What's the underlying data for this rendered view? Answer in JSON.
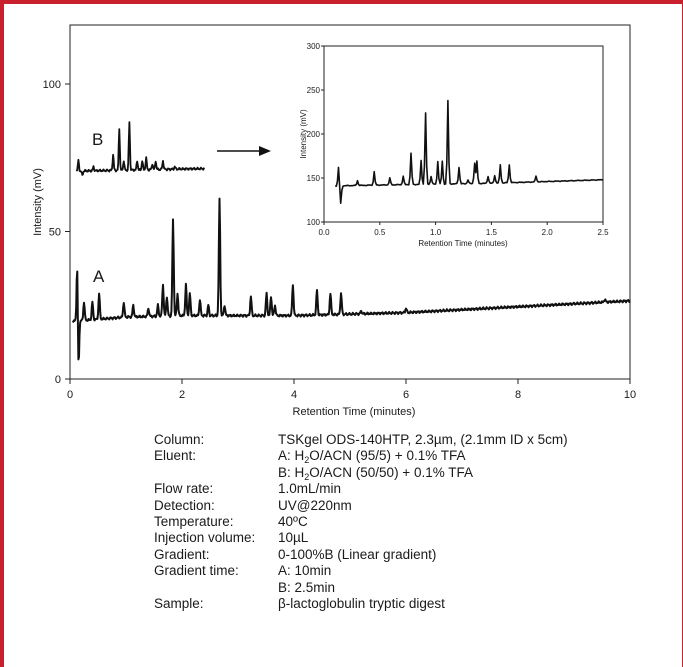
{
  "chart_data": [
    {
      "type": "line",
      "id": "main",
      "xlabel": "Retention Time (minutes)",
      "ylabel": "Intensity (mV)",
      "xlim": [
        0,
        10
      ],
      "ylim": [
        0,
        120
      ],
      "xticks": [
        0,
        2,
        4,
        6,
        8,
        10
      ],
      "yticks": [
        0,
        50,
        100
      ],
      "grid": false,
      "annotations": [
        "A",
        "B"
      ],
      "baseline_A": {
        "x": [
          0.0,
          1.0,
          2.0,
          3.0,
          4.0,
          5.0,
          6.0,
          7.0,
          8.0,
          9.0,
          10.0
        ],
        "y": [
          19.5,
          21,
          21.5,
          21.5,
          21.5,
          22,
          22.5,
          23.5,
          24.5,
          25.5,
          26.5
        ]
      },
      "peaks_A": [
        {
          "x": 0.13,
          "y": 41
        },
        {
          "x": 0.15,
          "y": 1
        },
        {
          "x": 0.25,
          "y": 26
        },
        {
          "x": 0.4,
          "y": 26
        },
        {
          "x": 0.52,
          "y": 29
        },
        {
          "x": 0.96,
          "y": 26
        },
        {
          "x": 1.13,
          "y": 25
        },
        {
          "x": 1.4,
          "y": 24
        },
        {
          "x": 1.57,
          "y": 25
        },
        {
          "x": 1.66,
          "y": 32
        },
        {
          "x": 1.73,
          "y": 28
        },
        {
          "x": 1.84,
          "y": 54
        },
        {
          "x": 1.92,
          "y": 29
        },
        {
          "x": 2.07,
          "y": 32
        },
        {
          "x": 2.14,
          "y": 29
        },
        {
          "x": 2.32,
          "y": 27
        },
        {
          "x": 2.47,
          "y": 25
        },
        {
          "x": 2.67,
          "y": 61
        },
        {
          "x": 2.76,
          "y": 25
        },
        {
          "x": 3.23,
          "y": 28
        },
        {
          "x": 3.51,
          "y": 29
        },
        {
          "x": 3.59,
          "y": 28
        },
        {
          "x": 3.66,
          "y": 25
        },
        {
          "x": 3.98,
          "y": 32
        },
        {
          "x": 4.41,
          "y": 30
        },
        {
          "x": 4.65,
          "y": 29
        },
        {
          "x": 4.84,
          "y": 29
        },
        {
          "x": 5.2,
          "y": 23
        },
        {
          "x": 6.0,
          "y": 24
        },
        {
          "x": 9.55,
          "y": 27
        }
      ],
      "baseline_B": {
        "x": [
          0.15,
          1.0,
          2.0,
          2.4
        ],
        "y": [
          70.5,
          70.8,
          71.2,
          71.3
        ]
      },
      "peaks_B": [
        {
          "x": 0.15,
          "y": 74
        },
        {
          "x": 0.22,
          "y": 69
        },
        {
          "x": 0.42,
          "y": 72
        },
        {
          "x": 0.77,
          "y": 76
        },
        {
          "x": 0.88,
          "y": 85
        },
        {
          "x": 0.96,
          "y": 74
        },
        {
          "x": 1.06,
          "y": 87
        },
        {
          "x": 1.2,
          "y": 74
        },
        {
          "x": 1.29,
          "y": 74
        },
        {
          "x": 1.36,
          "y": 75
        },
        {
          "x": 1.47,
          "y": 73
        },
        {
          "x": 1.53,
          "y": 74
        },
        {
          "x": 1.66,
          "y": 74
        },
        {
          "x": 1.87,
          "y": 72
        }
      ]
    },
    {
      "type": "line",
      "id": "inset",
      "xlabel": "Retention Time (minutes)",
      "ylabel": "Intensity (mV)",
      "xlim": [
        0,
        2.5
      ],
      "ylim": [
        100,
        300
      ],
      "xticks": [
        "0.0",
        "0.5",
        "1.0",
        "1.5",
        "2.0",
        "2.5"
      ],
      "yticks": [
        "100",
        "150",
        "200",
        "250",
        "300"
      ],
      "grid": false,
      "baseline": {
        "x": [
          0.1,
          0.5,
          1.0,
          1.5,
          2.0,
          2.5
        ],
        "y": [
          141,
          142,
          143,
          144,
          146,
          148
        ]
      },
      "peaks": [
        {
          "x": 0.13,
          "y": 162
        },
        {
          "x": 0.15,
          "y": 121
        },
        {
          "x": 0.3,
          "y": 147
        },
        {
          "x": 0.45,
          "y": 157
        },
        {
          "x": 0.59,
          "y": 150
        },
        {
          "x": 0.71,
          "y": 152
        },
        {
          "x": 0.78,
          "y": 178
        },
        {
          "x": 0.87,
          "y": 170
        },
        {
          "x": 0.91,
          "y": 224
        },
        {
          "x": 0.96,
          "y": 152
        },
        {
          "x": 1.02,
          "y": 169
        },
        {
          "x": 1.06,
          "y": 169
        },
        {
          "x": 1.11,
          "y": 238
        },
        {
          "x": 1.21,
          "y": 162
        },
        {
          "x": 1.29,
          "y": 148
        },
        {
          "x": 1.35,
          "y": 167
        },
        {
          "x": 1.37,
          "y": 169
        },
        {
          "x": 1.47,
          "y": 152
        },
        {
          "x": 1.53,
          "y": 153
        },
        {
          "x": 1.58,
          "y": 165
        },
        {
          "x": 1.66,
          "y": 165
        },
        {
          "x": 1.9,
          "y": 152
        }
      ]
    }
  ],
  "conditions": [
    {
      "label": "Column:",
      "value": "TSKgel ODS-140HTP, 2.3µm, (2.1mm ID x 5cm)"
    },
    {
      "label": "Eluent:",
      "value_pre": "A: H",
      "value_sub": "2",
      "value_post": "O/ACN (95/5) + 0.1% TFA"
    },
    {
      "label": "",
      "value_pre": "B: H",
      "value_sub": "2",
      "value_post": "O/ACN (50/50) + 0.1% TFA"
    },
    {
      "label": "Flow rate:",
      "value": "1.0mL/min"
    },
    {
      "label": "Detection:",
      "value": "UV@220nm"
    },
    {
      "label": "Temperature:",
      "value": "40ºC"
    },
    {
      "label": "Injection volume:",
      "value": "10µL"
    },
    {
      "label": "Gradient:",
      "value": "0-100%B (Linear gradient)"
    },
    {
      "label": "Gradient time:",
      "value": "A: 10min"
    },
    {
      "label": "",
      "value": "B:  2.5min"
    },
    {
      "label": "Sample:",
      "value": "β-lactoglobulin tryptic digest"
    }
  ],
  "colors": {
    "border": "#c8202d",
    "trace": "#111111",
    "text": "#1a1a1a"
  }
}
